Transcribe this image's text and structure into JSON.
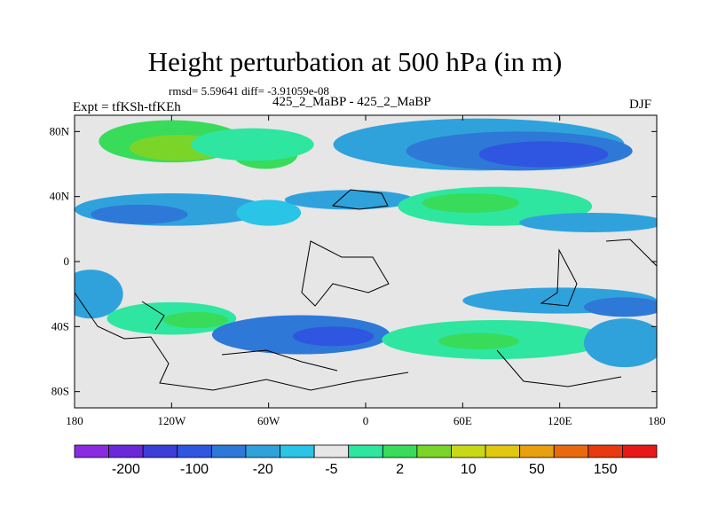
{
  "title": "Height perturbation at 500 hPa (in m)",
  "subtitle": "rmsd= 5.59641 diff= -3.91059e-08",
  "left_label": "Expt = tfKSh-tfKEh",
  "center_label": "425_2_MaBP - 425_2_MaBP",
  "right_label": "DJF",
  "map": {
    "lon_range": [
      -180,
      180
    ],
    "lat_range": [
      -90,
      90
    ],
    "background_color": "#e6e6e6",
    "x_ticks": [
      {
        "value": -180,
        "label": "180"
      },
      {
        "value": -120,
        "label": "120W"
      },
      {
        "value": -60,
        "label": "60W"
      },
      {
        "value": 0,
        "label": "0"
      },
      {
        "value": 60,
        "label": "60E"
      },
      {
        "value": 120,
        "label": "120E"
      },
      {
        "value": 180,
        "label": "180"
      }
    ],
    "y_ticks": [
      {
        "value": 80,
        "label": "80N"
      },
      {
        "value": 40,
        "label": "40N"
      },
      {
        "value": 0,
        "label": "0"
      },
      {
        "value": -40,
        "label": "40S"
      },
      {
        "value": -80,
        "label": "80S"
      }
    ],
    "blobs": [
      {
        "lon": -120,
        "lat": 74,
        "rlon": 45,
        "rlat": 13,
        "level": 9
      },
      {
        "lon": -116,
        "lat": 70,
        "rlon": 30,
        "rlat": 8,
        "level": 10
      },
      {
        "lon": -62,
        "lat": 66,
        "rlon": 20,
        "rlat": 9,
        "level": 9
      },
      {
        "lon": -70,
        "lat": 72,
        "rlon": 38,
        "rlat": 10,
        "level": 8
      },
      {
        "lon": 70,
        "lat": 72,
        "rlon": 90,
        "rlat": 16,
        "level": 5
      },
      {
        "lon": 95,
        "lat": 68,
        "rlon": 70,
        "rlat": 12,
        "level": 4
      },
      {
        "lon": 110,
        "lat": 66,
        "rlon": 40,
        "rlat": 8,
        "level": 3
      },
      {
        "lon": -120,
        "lat": 32,
        "rlon": 60,
        "rlat": 10,
        "level": 5
      },
      {
        "lon": -140,
        "lat": 29,
        "rlon": 30,
        "rlat": 6,
        "level": 4
      },
      {
        "lon": -60,
        "lat": 30,
        "rlon": 20,
        "rlat": 8,
        "level": 6
      },
      {
        "lon": -10,
        "lat": 38,
        "rlon": 40,
        "rlat": 6,
        "level": 5
      },
      {
        "lon": 80,
        "lat": 34,
        "rlon": 60,
        "rlat": 12,
        "level": 8
      },
      {
        "lon": 65,
        "lat": 36,
        "rlon": 30,
        "rlat": 6,
        "level": 9
      },
      {
        "lon": 140,
        "lat": 24,
        "rlon": 45,
        "rlat": 6,
        "level": 5
      },
      {
        "lon": -170,
        "lat": -20,
        "rlon": 20,
        "rlat": 15,
        "level": 5
      },
      {
        "lon": -120,
        "lat": -35,
        "rlon": 40,
        "rlat": 10,
        "level": 8
      },
      {
        "lon": -105,
        "lat": -36,
        "rlon": 20,
        "rlat": 5,
        "level": 9
      },
      {
        "lon": -40,
        "lat": -45,
        "rlon": 55,
        "rlat": 12,
        "level": 4
      },
      {
        "lon": -20,
        "lat": -46,
        "rlon": 25,
        "rlat": 6,
        "level": 3
      },
      {
        "lon": 120,
        "lat": -24,
        "rlon": 60,
        "rlat": 8,
        "level": 5
      },
      {
        "lon": 160,
        "lat": -28,
        "rlon": 25,
        "rlat": 6,
        "level": 4
      },
      {
        "lon": 80,
        "lat": -48,
        "rlon": 70,
        "rlat": 12,
        "level": 8
      },
      {
        "lon": 70,
        "lat": -49,
        "rlon": 25,
        "rlat": 5,
        "level": 9
      },
      {
        "lon": -80,
        "lat": -76,
        "rlon": 60,
        "rlat": 10,
        "level": 7
      },
      {
        "lon": 20,
        "lat": -70,
        "rlon": 40,
        "rlat": 10,
        "level": 7
      },
      {
        "lon": 120,
        "lat": -78,
        "rlon": 40,
        "rlat": 8,
        "level": 7
      },
      {
        "lon": 160,
        "lat": -50,
        "rlon": 25,
        "rlat": 15,
        "level": 5
      }
    ]
  },
  "colorbar": {
    "colors": [
      "#8a2be2",
      "#6a28d8",
      "#3d3dd8",
      "#2f56e0",
      "#2e78d8",
      "#2fa2dc",
      "#29c4e6",
      "#e6e6e6",
      "#2ee6a0",
      "#38dc5a",
      "#7ad528",
      "#c8d818",
      "#e0c810",
      "#e8a010",
      "#e86a10",
      "#e83a10",
      "#e81818"
    ],
    "tick_labels": [
      "-200",
      "-100",
      "-20",
      "-5",
      "2",
      "10",
      "50",
      "150"
    ]
  }
}
